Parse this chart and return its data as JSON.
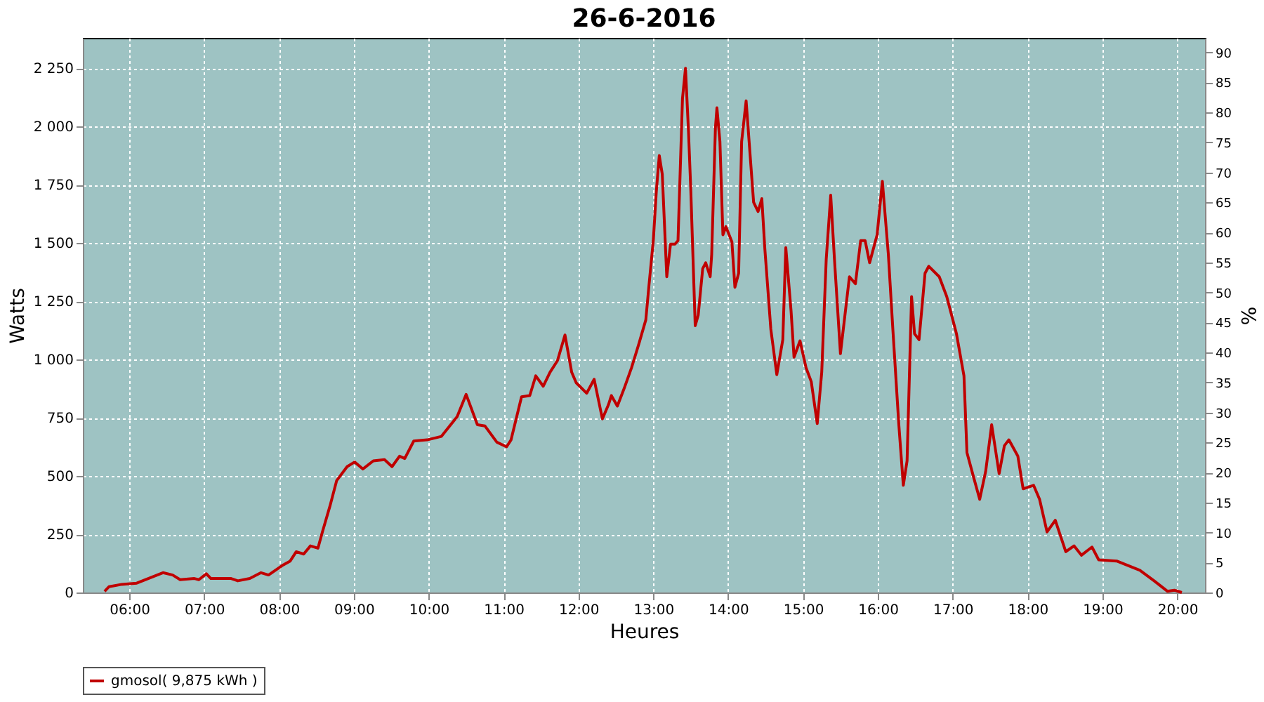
{
  "chart_data": {
    "type": "line",
    "title": "26-6-2016",
    "xlabel": "Heures",
    "ylabel": "Watts",
    "y2label": "%",
    "xlim": [
      5.38,
      20.37
    ],
    "xticks": [
      {
        "value": 6,
        "label": "06:00"
      },
      {
        "value": 7,
        "label": "07:00"
      },
      {
        "value": 8,
        "label": "08:00"
      },
      {
        "value": 9,
        "label": "09:00"
      },
      {
        "value": 10,
        "label": "10:00"
      },
      {
        "value": 11,
        "label": "11:00"
      },
      {
        "value": 12,
        "label": "12:00"
      },
      {
        "value": 13,
        "label": "13:00"
      },
      {
        "value": 14,
        "label": "14:00"
      },
      {
        "value": 15,
        "label": "15:00"
      },
      {
        "value": 16,
        "label": "16:00"
      },
      {
        "value": 17,
        "label": "17:00"
      },
      {
        "value": 18,
        "label": "18:00"
      },
      {
        "value": 19,
        "label": "19:00"
      },
      {
        "value": 20,
        "label": "20:00"
      }
    ],
    "ylim": [
      0,
      2380
    ],
    "yticks": [
      0,
      250,
      500,
      750,
      {
        "value": 1000,
        "label": "1 000"
      },
      {
        "value": 1250,
        "label": "1 250"
      },
      {
        "value": 1500,
        "label": "1 500"
      },
      {
        "value": 1750,
        "label": "1 750"
      },
      {
        "value": 2000,
        "label": "2 000"
      },
      {
        "value": 2250,
        "label": "2 250"
      }
    ],
    "y2lim": [
      0,
      92.4
    ],
    "y2ticks": [
      0,
      5,
      10,
      15,
      20,
      25,
      30,
      35,
      40,
      45,
      50,
      55,
      60,
      65,
      70,
      75,
      80,
      85,
      90
    ],
    "grid": true,
    "legend": "bottom",
    "marker": "none",
    "line_style": "solid",
    "series": [
      {
        "name": "gmosol( 9,875 kWh )",
        "color": "#c00000",
        "x": [
          5.67,
          5.73,
          5.9,
          6.1,
          6.45,
          6.58,
          6.68,
          6.87,
          6.93,
          7.03,
          7.09,
          7.36,
          7.45,
          7.61,
          7.76,
          7.86,
          8.04,
          8.15,
          8.23,
          8.33,
          8.42,
          8.52,
          8.58,
          8.68,
          8.77,
          8.91,
          9.01,
          9.12,
          9.26,
          9.41,
          9.51,
          9.61,
          9.68,
          9.8,
          9.98,
          10.17,
          10.38,
          10.5,
          10.65,
          10.75,
          10.91,
          11.04,
          11.1,
          11.24,
          11.35,
          11.43,
          11.53,
          11.62,
          11.72,
          11.82,
          11.91,
          11.97,
          12.11,
          12.21,
          12.32,
          12.4,
          12.44,
          12.52,
          12.61,
          12.71,
          12.81,
          12.9,
          12.94,
          13.0,
          13.04,
          13.08,
          13.12,
          13.18,
          13.23,
          13.29,
          13.33,
          13.39,
          13.43,
          13.47,
          13.5,
          13.56,
          13.6,
          13.66,
          13.7,
          13.76,
          13.78,
          13.83,
          13.85,
          13.89,
          13.93,
          13.97,
          14.05,
          14.09,
          14.14,
          14.18,
          14.24,
          14.28,
          14.34,
          14.4,
          14.45,
          14.49,
          14.57,
          14.65,
          14.73,
          14.77,
          14.84,
          14.88,
          14.96,
          15.04,
          15.11,
          15.19,
          15.25,
          15.31,
          15.37,
          15.42,
          15.5,
          15.62,
          15.7,
          15.77,
          15.83,
          15.89,
          15.99,
          16.06,
          16.14,
          16.2,
          16.28,
          16.34,
          16.39,
          16.45,
          16.49,
          16.55,
          16.63,
          16.68,
          16.82,
          16.92,
          17.05,
          17.15,
          17.19,
          17.27,
          17.36,
          17.44,
          17.52,
          17.62,
          17.69,
          17.75,
          17.87,
          17.94,
          18.08,
          18.16,
          18.26,
          18.37,
          18.51,
          18.62,
          18.72,
          18.86,
          18.95,
          19.19,
          19.5,
          19.69,
          19.87,
          19.96,
          20.06
        ],
        "values": [
          5,
          25,
          35,
          40,
          85,
          75,
          55,
          60,
          55,
          80,
          60,
          60,
          50,
          60,
          85,
          75,
          115,
          135,
          175,
          165,
          200,
          190,
          260,
          370,
          480,
          540,
          560,
          530,
          565,
          570,
          540,
          585,
          575,
          650,
          655,
          670,
          755,
          850,
          720,
          715,
          645,
          625,
          655,
          840,
          845,
          930,
          885,
          945,
          995,
          1105,
          945,
          900,
          855,
          915,
          745,
          805,
          845,
          800,
          875,
          965,
          1070,
          1170,
          1310,
          1510,
          1720,
          1875,
          1795,
          1355,
          1495,
          1495,
          1510,
          2120,
          2250,
          1980,
          1735,
          1145,
          1190,
          1390,
          1415,
          1355,
          1450,
          1995,
          2080,
          1935,
          1535,
          1570,
          1505,
          1310,
          1370,
          1935,
          2110,
          1935,
          1675,
          1635,
          1690,
          1475,
          1130,
          935,
          1085,
          1480,
          1210,
          1010,
          1080,
          965,
          905,
          725,
          945,
          1430,
          1705,
          1430,
          1025,
          1355,
          1325,
          1510,
          1510,
          1415,
          1535,
          1765,
          1450,
          1130,
          720,
          460,
          565,
          1270,
          1110,
          1085,
          1370,
          1400,
          1355,
          1270,
          1110,
          930,
          600,
          505,
          400,
          520,
          720,
          510,
          630,
          655,
          585,
          445,
          460,
          400,
          260,
          310,
          175,
          200,
          160,
          195,
          140,
          135,
          95,
          50,
          5,
          10,
          0
        ]
      }
    ]
  }
}
